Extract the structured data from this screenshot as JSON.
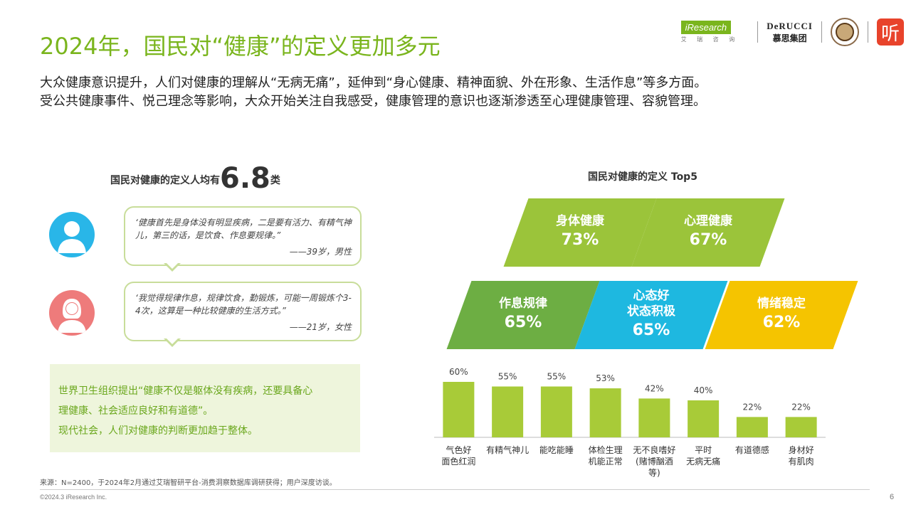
{
  "header": {
    "title": "2024年，国民对“健康”的定义更加多元",
    "subtitle_line1": "大众健康意识提升，人们对健康的理解从“无病无痛”，延伸到“身心健康、精神面貌、外在形象、生活作息”等多方面。",
    "subtitle_line2": "受公共健康事件、悦己理念等影响，大众开始关注自我感受，健康管理的意识也逐渐渗透至心理健康管理、容貌管理。"
  },
  "logos": {
    "iresearch": "iResearch",
    "iresearch_cn": "艾 瑞 咨 询",
    "derucci_en": "DeRUCCI",
    "derucci_cn": "慕思集团",
    "ting": "听"
  },
  "left": {
    "avg_prefix": "国民对健康的定义人均有",
    "avg_value": "6.8",
    "avg_suffix": "类",
    "quote1": "‘健康首先是身体没有明显疾病，二是要有活力、有精气神儿，第三的话，是饮食、作息要规律。”",
    "quote1_by": "——39岁，男性",
    "quote2": "‘我觉得规律作息，规律饮食，勤锻炼，可能一周锻炼个3-4次，这算是一种比较健康的生活方式。”",
    "quote2_by": "——21岁，女性",
    "who_line1": "世界卫生组织提出“健康不仅是躯体没有疾病，还要具备心",
    "who_line2": "理健康、社会适应良好和有道德”。",
    "who_line3": "现代社会，人们对健康的判断更加趋于整体。"
  },
  "top5": {
    "title": "国民对健康的定义 Top5",
    "items": [
      {
        "label": "身体健康",
        "pct": "73%"
      },
      {
        "label": "心理健康",
        "pct": "67%"
      },
      {
        "label": "作息规律",
        "pct": "65%"
      },
      {
        "label_line1": "心态好",
        "label_line2": "状态积极",
        "pct": "65%"
      },
      {
        "label": "情绪稳定",
        "pct": "62%"
      }
    ]
  },
  "chart_data": {
    "type": "bar",
    "categories": [
      "气色好\n面色红润",
      "有精气神儿",
      "能吃能睡",
      "体检生理\n机能正常",
      "无不良嗜好\n(赌博酗酒\n等)",
      "平时\n无病无痛",
      "有道德感",
      "身材好\n有肌肉"
    ],
    "values": [
      60,
      55,
      55,
      53,
      42,
      40,
      22,
      22
    ],
    "value_labels": [
      "60%",
      "55%",
      "55%",
      "53%",
      "42%",
      "40%",
      "22%",
      "22%"
    ],
    "ylim": [
      0,
      100
    ],
    "bar_color": "#A8CB38",
    "grid": false
  },
  "footer": {
    "source": "来源：N=2400，于2024年2月通过艾瑞智研平台-消费洞察数据库调研获得；用户深度访谈。",
    "copyright": "©2024.3 iResearch Inc.",
    "page": "6"
  }
}
